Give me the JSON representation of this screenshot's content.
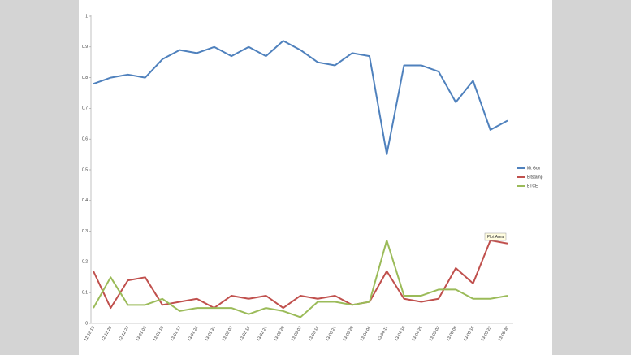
{
  "chart_data": {
    "type": "line",
    "categories": [
      "12-12-13",
      "12-12-20",
      "12-12-27",
      "13-01-03",
      "13-01-10",
      "13-01-17",
      "13-01-24",
      "13-01-31",
      "13-02-07",
      "13-02-14",
      "13-02-21",
      "13-02-28",
      "13-03-07",
      "13-03-14",
      "13-03-21",
      "13-03-28",
      "13-04-04",
      "13-04-11",
      "13-04-18",
      "13-04-25",
      "13-05-02",
      "13-05-09",
      "13-05-16",
      "13-05-23",
      "13-05-30"
    ],
    "series": [
      {
        "name": "Mt Gox",
        "color": "#4f81bd",
        "values": [
          0.78,
          0.8,
          0.81,
          0.8,
          0.86,
          0.89,
          0.88,
          0.9,
          0.87,
          0.9,
          0.87,
          0.92,
          0.89,
          0.85,
          0.84,
          0.88,
          0.87,
          0.55,
          0.84,
          0.84,
          0.82,
          0.72,
          0.79,
          0.63,
          0.66
        ]
      },
      {
        "name": "Bitstamp",
        "color": "#c0504d",
        "values": [
          0.17,
          0.05,
          0.14,
          0.15,
          0.06,
          0.07,
          0.08,
          0.05,
          0.09,
          0.08,
          0.09,
          0.05,
          0.09,
          0.08,
          0.09,
          0.06,
          0.07,
          0.17,
          0.08,
          0.07,
          0.08,
          0.18,
          0.13,
          0.27,
          0.26
        ]
      },
      {
        "name": "BTCE",
        "color": "#9bbb59",
        "values": [
          0.05,
          0.15,
          0.06,
          0.06,
          0.08,
          0.04,
          0.05,
          0.05,
          0.05,
          0.03,
          0.05,
          0.04,
          0.02,
          0.07,
          0.07,
          0.06,
          0.07,
          0.27,
          0.09,
          0.09,
          0.11,
          0.11,
          0.08,
          0.08,
          0.09
        ]
      }
    ],
    "ylim": [
      0,
      1
    ],
    "yticks": [
      0,
      0.1,
      0.2,
      0.3,
      0.4,
      0.5,
      0.6,
      0.7,
      0.8,
      0.9,
      1
    ],
    "grid": false,
    "legend": "right",
    "tooltip": "Plot Area"
  }
}
